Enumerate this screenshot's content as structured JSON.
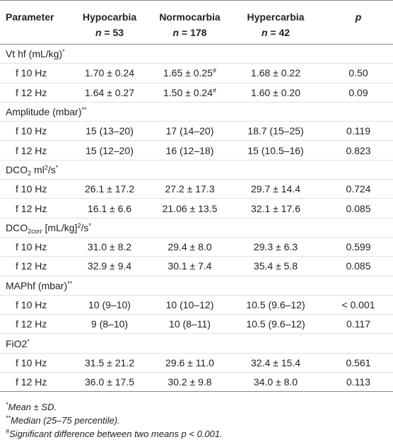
{
  "table": {
    "header": [
      {
        "label": "Parameter"
      },
      {
        "label": "Hypocarbia",
        "sub": [
          {
            "text": "n",
            "style": "italic"
          },
          {
            "text": " = 53"
          }
        ]
      },
      {
        "label": "Normocarbia",
        "sub": [
          {
            "text": "n",
            "style": "italic"
          },
          {
            "text": " = 178"
          }
        ]
      },
      {
        "label": "Hypercarbia",
        "sub": [
          {
            "text": "n",
            "style": "italic"
          },
          {
            "text": " = 42"
          }
        ]
      },
      {
        "label": [
          {
            "text": "p",
            "style": "italic"
          }
        ]
      }
    ],
    "rows": [
      {
        "section": [
          {
            "text": "Vt hf (mL/kg)"
          },
          {
            "text": "*",
            "style": "sup"
          }
        ]
      },
      {
        "cells": [
          "f 10 Hz",
          "1.70 ± 0.24",
          [
            {
              "text": "1.65 ± 0.25"
            },
            {
              "text": "#",
              "style": "sup"
            }
          ],
          "1.68 ± 0.22",
          "0.50"
        ]
      },
      {
        "cells": [
          "f 12 Hz",
          "1.64 ± 0.27",
          [
            {
              "text": "1.50 ± 0.24"
            },
            {
              "text": "#",
              "style": "sup"
            }
          ],
          "1.60 ± 0.20",
          "0.09"
        ]
      },
      {
        "section": [
          {
            "text": "Amplitude (mbar)"
          },
          {
            "text": "**",
            "style": "sup"
          }
        ]
      },
      {
        "cells": [
          "f 10 Hz",
          "15 (13–20)",
          "17 (14–20)",
          "18.7 (15–25)",
          "0.119"
        ]
      },
      {
        "cells": [
          "f 12 Hz",
          "15 (12–20)",
          "16 (12–18)",
          "15 (10.5–16)",
          "0.823"
        ]
      },
      {
        "section": [
          {
            "text": "DCO"
          },
          {
            "text": "2",
            "style": "sub"
          },
          {
            "text": " ml"
          },
          {
            "text": "2",
            "style": "sup"
          },
          {
            "text": "/s"
          },
          {
            "text": "*",
            "style": "sup"
          }
        ]
      },
      {
        "cells": [
          "f 10 Hz",
          "26.1 ± 17.2",
          "27.2 ± 17.3",
          "29.7 ± 14.4",
          "0.724"
        ]
      },
      {
        "cells": [
          "f 12 Hz",
          "16.1 ± 6.6",
          "21.06 ± 13.5",
          "32.1 ± 17.6",
          "0.085"
        ]
      },
      {
        "section": [
          {
            "text": "DCO"
          },
          {
            "text": "2corr",
            "style": "sub"
          },
          {
            "text": " [mL/kg]"
          },
          {
            "text": "2",
            "style": "sup"
          },
          {
            "text": "/s"
          },
          {
            "text": "*",
            "style": "sup"
          }
        ]
      },
      {
        "cells": [
          "f 10 Hz",
          "31.0 ± 8.2",
          "29.4 ± 8.0",
          "29.3 ± 6.3",
          "0.599"
        ]
      },
      {
        "cells": [
          "f 12 Hz",
          "32.9 ± 9.4",
          "30.1 ± 7.4",
          "35.4 ± 5.8",
          "0.085"
        ]
      },
      {
        "section": [
          {
            "text": "MAPhf (mbar)"
          },
          {
            "text": "**",
            "style": "sup"
          }
        ]
      },
      {
        "cells": [
          "f 10 Hz",
          "10 (9–10)",
          "10 (10–12)",
          "10.5 (9.6–12)",
          "< 0.001"
        ]
      },
      {
        "cells": [
          "f 12 Hz",
          "9 (8–10)",
          "10 (8–11)",
          "10.5 (9.6–12)",
          "0.117"
        ]
      },
      {
        "section": [
          {
            "text": "FiO2"
          },
          {
            "text": "*",
            "style": "sup"
          }
        ]
      },
      {
        "cells": [
          "f 10 Hz",
          "31.5 ± 21.2",
          "29.6 ± 11.0",
          "32.4 ± 15.4",
          "0.561"
        ]
      },
      {
        "cells": [
          "f 12 Hz",
          "36.0 ± 17.5",
          "30.2 ± 9.8",
          "34.0 ± 8.0",
          "0.113"
        ]
      }
    ],
    "footnotes": [
      [
        {
          "text": "*",
          "style": "sup"
        },
        {
          "text": "Mean ± SD."
        }
      ],
      [
        {
          "text": "**",
          "style": "sup"
        },
        {
          "text": "Median (25–75 percentile)."
        }
      ],
      [
        {
          "text": "#",
          "style": "sup"
        },
        {
          "text": "Significant difference between two means p < 0.001."
        }
      ]
    ]
  }
}
